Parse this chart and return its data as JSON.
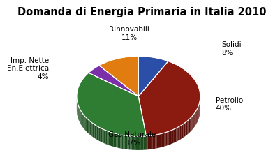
{
  "title": "Domanda di Energia Primaria in Italia 2010",
  "segments": [
    {
      "label": "Solidi",
      "pct": "8%",
      "value": 8,
      "color": "#2b4ea8",
      "dark_color": "#1a3070"
    },
    {
      "label": "Petrolio",
      "pct": "40%",
      "value": 40,
      "color": "#8b1a10",
      "dark_color": "#5a100a"
    },
    {
      "label": "Gas Naturale",
      "pct": "37%",
      "value": 37,
      "color": "#2e7d32",
      "dark_color": "#1b4d1e"
    },
    {
      "label": "Imp. Nette\nEn.Elettrica",
      "pct": "4%",
      "value": 4,
      "color": "#7b2fa8",
      "dark_color": "#4a1a6a"
    },
    {
      "label": "Rinnovabili",
      "pct": "11%",
      "value": 11,
      "color": "#e07c10",
      "dark_color": "#a05508"
    }
  ],
  "startangle": 90,
  "title_fontsize": 10.5,
  "label_fontsize": 7.5
}
